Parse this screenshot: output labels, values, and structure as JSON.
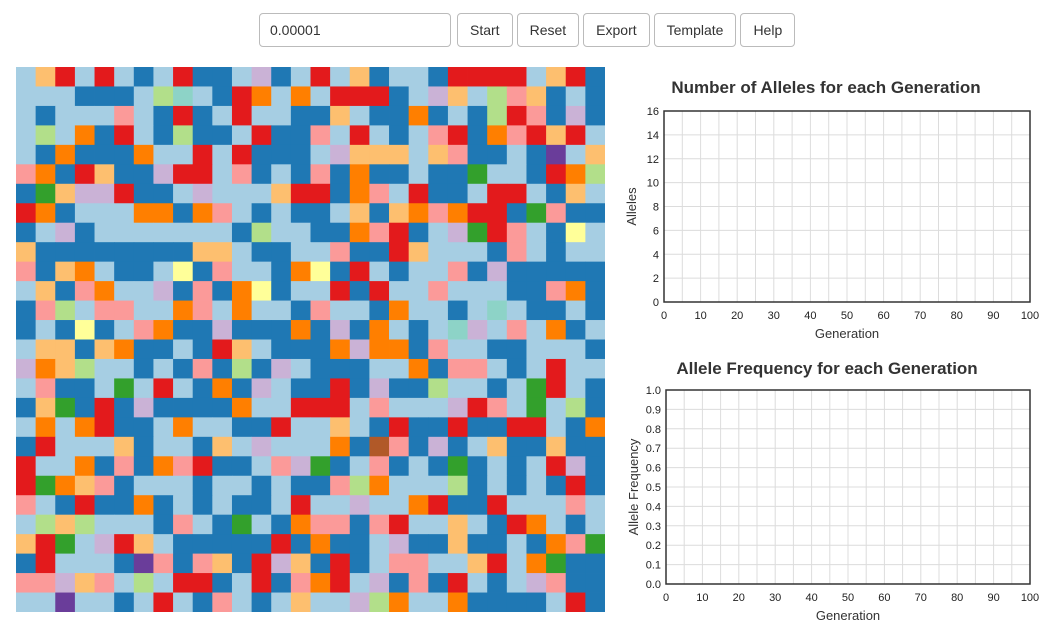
{
  "toolbar": {
    "mutation_rate_value": "0.00001",
    "start_label": "Start",
    "reset_label": "Reset",
    "export_label": "Export",
    "template_label": "Template",
    "help_label": "Help"
  },
  "grid": {
    "cols": 30,
    "rows": 28,
    "palette": [
      "#1f78b4",
      "#a6cee3",
      "#e31a1c",
      "#fb9a99",
      "#ff7f00",
      "#fdbf6f",
      "#cab2d6",
      "#33a02c",
      "#b2df8a",
      "#6a3d9a",
      "#ffff99",
      "#b15928",
      "#8dd3c7"
    ],
    "weights": [
      32,
      28,
      9,
      9,
      7,
      6,
      4,
      2,
      2,
      0.3,
      0.5,
      0.2,
      0.2
    ]
  },
  "chart_data": [
    {
      "type": "line",
      "title": "Number of Alleles for each Generation",
      "xlabel": "Generation",
      "ylabel": "Alleles",
      "xlim": [
        0,
        100
      ],
      "ylim": [
        0,
        16
      ],
      "xticks": [
        "0",
        "10",
        "20",
        "30",
        "40",
        "50",
        "60",
        "70",
        "80",
        "90",
        "100"
      ],
      "yticks": [
        "0",
        "2",
        "4",
        "6",
        "8",
        "10",
        "12",
        "14",
        "16"
      ],
      "grid": true,
      "series": []
    },
    {
      "type": "line",
      "title": "Allele Frequency for each Generation",
      "xlabel": "Generation",
      "ylabel": "Allele Frequency",
      "xlim": [
        0,
        100
      ],
      "ylim": [
        0,
        1
      ],
      "xticks": [
        "0",
        "10",
        "20",
        "30",
        "40",
        "50",
        "60",
        "70",
        "80",
        "90",
        "100"
      ],
      "yticks": [
        "0.0",
        "0.1",
        "0.2",
        "0.3",
        "0.4",
        "0.5",
        "0.6",
        "0.7",
        "0.8",
        "0.9",
        "1.0"
      ],
      "grid": true,
      "series": []
    }
  ]
}
